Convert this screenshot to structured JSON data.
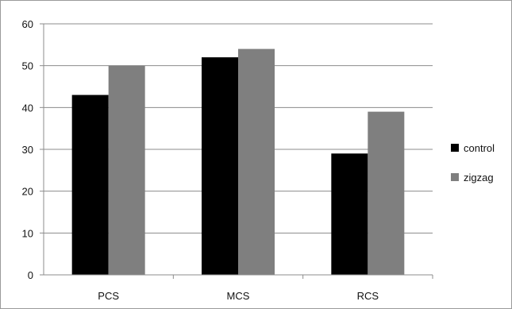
{
  "chart_data": {
    "type": "bar",
    "categories": [
      "PCS",
      "MCS",
      "RCS"
    ],
    "series": [
      {
        "name": "control",
        "values": [
          43,
          52,
          29
        ],
        "color": "#000000"
      },
      {
        "name": "zigzag",
        "values": [
          50,
          54,
          39
        ],
        "color": "#7f7f7f"
      }
    ],
    "yticks": [
      "0",
      "10",
      "20",
      "30",
      "40",
      "50",
      "60"
    ],
    "ylim": [
      0,
      60
    ],
    "grid": true,
    "legend": "right"
  }
}
